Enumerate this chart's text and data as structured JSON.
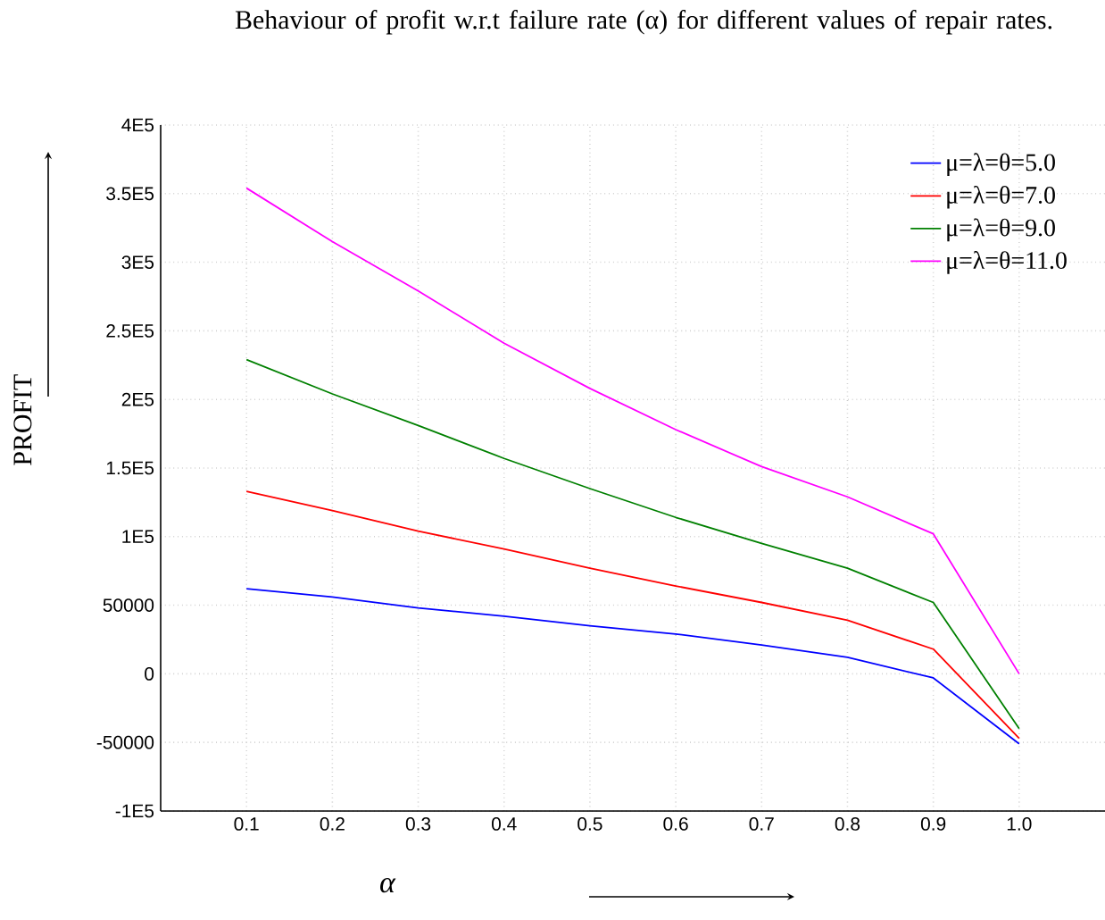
{
  "chart_data": {
    "type": "line",
    "title": "Behaviour of  profit  w.r.t  failure rate (α) for different values of repair rates.",
    "xlabel": "α",
    "ylabel": "PROFIT",
    "x": [
      0.1,
      0.2,
      0.3,
      0.4,
      0.5,
      0.6,
      0.7,
      0.8,
      0.9,
      1.0
    ],
    "series": [
      {
        "name": "μ=λ=θ=5.0",
        "color": "#0000ff",
        "values": [
          62000,
          56000,
          48000,
          42000,
          35000,
          29000,
          21000,
          12000,
          -3000,
          -51000
        ]
      },
      {
        "name": "μ=λ=θ=7.0",
        "color": "#ff0000",
        "values": [
          133000,
          119000,
          104000,
          91000,
          77000,
          64000,
          52000,
          39000,
          18000,
          -47000
        ]
      },
      {
        "name": "μ=λ=θ=9.0",
        "color": "#008000",
        "values": [
          229000,
          204000,
          181000,
          157000,
          135000,
          114000,
          95000,
          77000,
          52000,
          -40000
        ]
      },
      {
        "name": "μ=λ=θ=11.0",
        "color": "#ff00ff",
        "values": [
          354000,
          315000,
          279000,
          241000,
          208000,
          178000,
          151000,
          129000,
          102000,
          0
        ]
      }
    ],
    "xlim": [
      0,
      1.1
    ],
    "ylim": [
      -100000,
      400000
    ],
    "xticks": [
      0.1,
      0.2,
      0.3,
      0.4,
      0.5,
      0.6,
      0.7,
      0.8,
      0.9,
      {
        "value": 1.0,
        "label": "1.0"
      }
    ],
    "yticks": [
      {
        "value": -100000,
        "label": "-1E5"
      },
      -50000,
      0,
      50000,
      {
        "value": 100000,
        "label": "1E5"
      },
      {
        "value": 150000,
        "label": "1.5E5"
      },
      {
        "value": 200000,
        "label": "2E5"
      },
      {
        "value": 250000,
        "label": "2.5E5"
      },
      {
        "value": 300000,
        "label": "3E5"
      },
      {
        "value": 350000,
        "label": "3.5E5"
      },
      {
        "value": 400000,
        "label": "4E5"
      }
    ],
    "grid": true,
    "legend": "top right",
    "marker": "none",
    "line_style": "solid"
  }
}
